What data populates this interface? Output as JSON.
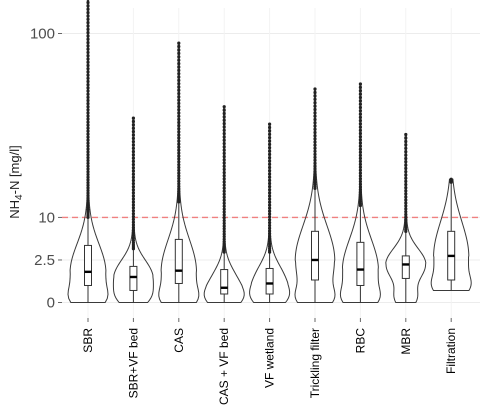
{
  "chart_data": {
    "type": "violin",
    "ylabel_main": "NH",
    "ylabel_sub": "4",
    "ylabel_rest": "-N [mg/l]",
    "y_ticks": [
      {
        "value": 0,
        "label": "0"
      },
      {
        "value": 2.5,
        "label": "2.5"
      },
      {
        "value": 10,
        "label": "10"
      },
      {
        "value": 100,
        "label": "100"
      }
    ],
    "y_scale": "non-linear (square-root-like)",
    "ylim": [
      0,
      150
    ],
    "threshold": {
      "value": 10,
      "color": "#f08080",
      "style": "dashed"
    },
    "grid": true,
    "categories": [
      "SBR",
      "SBR+VF bed",
      "CAS",
      "CAS + VF bed",
      "VF wetland",
      "Trickling filter",
      "RBC",
      "MBR",
      "Filtration"
    ],
    "series": [
      {
        "min": 0,
        "q1": 0.4,
        "median": 1.3,
        "q3": 4.5,
        "whisker_high": 10,
        "max": 145
      },
      {
        "min": 0,
        "q1": 0.2,
        "median": 0.9,
        "q3": 1.8,
        "whisker_high": 4,
        "max": 47
      },
      {
        "min": 0,
        "q1": 0.5,
        "median": 1.4,
        "q3": 5.5,
        "whisker_high": 14,
        "max": 93
      },
      {
        "min": 0,
        "q1": 0.1,
        "median": 0.3,
        "q3": 1.5,
        "whisker_high": 3.5,
        "max": 53
      },
      {
        "min": 0,
        "q1": 0.1,
        "median": 0.5,
        "q3": 1.6,
        "whisker_high": 3.5,
        "max": 44
      },
      {
        "min": 0,
        "q1": 0.7,
        "median": 2.5,
        "q3": 7,
        "whisker_high": 18,
        "max": 63
      },
      {
        "min": 0,
        "q1": 0.4,
        "median": 1.5,
        "q3": 5,
        "whisker_high": 13,
        "max": 66
      },
      {
        "min": 0,
        "q1": 0.8,
        "median": 2,
        "q3": 3,
        "whisker_high": 7,
        "max": 39
      },
      {
        "min": 0.2,
        "q1": 0.7,
        "median": 3,
        "q3": 7,
        "whisker_high": 20,
        "max": 21
      }
    ]
  }
}
